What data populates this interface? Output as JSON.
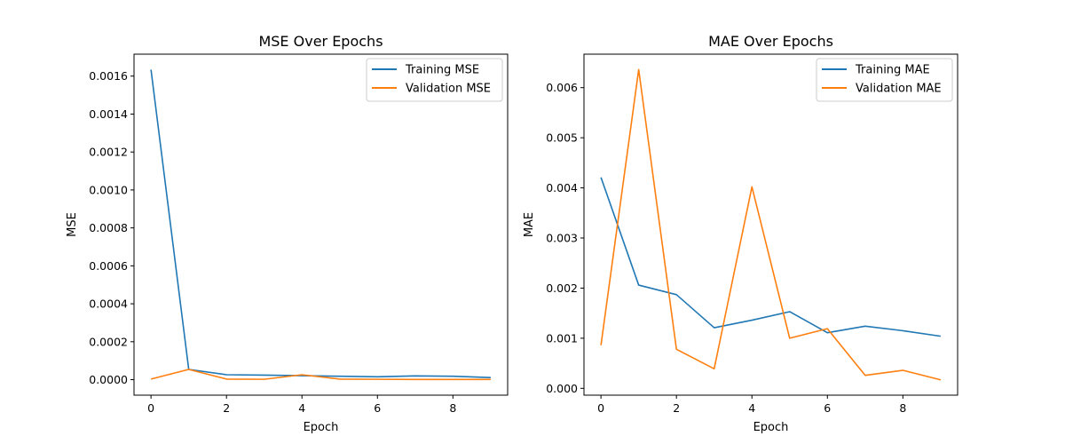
{
  "colors": {
    "training": "#1f77b4",
    "validation": "#ff7f0e"
  },
  "chart_data": [
    {
      "type": "line",
      "title": "MSE Over Epochs",
      "xlabel": "Epoch",
      "ylabel": "MSE",
      "x": [
        0,
        1,
        2,
        3,
        4,
        5,
        6,
        7,
        8,
        9
      ],
      "xlim": [
        -0.45,
        9.45
      ],
      "ylim": [
        -8.17e-05,
        0.0017157
      ],
      "xticks": [
        0,
        2,
        4,
        6,
        8
      ],
      "xtick_labels": [
        "0",
        "2",
        "4",
        "6",
        "8"
      ],
      "yticks": [
        0.0,
        0.0002,
        0.0004,
        0.0006,
        0.0008,
        0.001,
        0.0012,
        0.0014,
        0.0016
      ],
      "ytick_labels": [
        "0.0000",
        "0.0002",
        "0.0004",
        "0.0006",
        "0.0008",
        "0.0010",
        "0.0012",
        "0.0014",
        "0.0016"
      ],
      "legend": "top-right",
      "grid": false,
      "series": [
        {
          "name": "Training MSE",
          "color": "#1f77b4",
          "values": [
            0.001634,
            5.4e-05,
            2.6e-05,
            2.4e-05,
            2.1e-05,
            1.8e-05,
            1.5e-05,
            2e-05,
            1.8e-05,
            1.1e-05
          ]
        },
        {
          "name": "Validation MSE",
          "color": "#ff7f0e",
          "values": [
            3e-06,
            5.4e-05,
            3e-06,
            2e-06,
            2.6e-05,
            3e-06,
            2e-06,
            1e-06,
            1e-06,
            1e-06
          ]
        }
      ]
    },
    {
      "type": "line",
      "title": "MAE Over Epochs",
      "xlabel": "Epoch",
      "ylabel": "MAE",
      "x": [
        0,
        1,
        2,
        3,
        4,
        5,
        6,
        7,
        8,
        9
      ],
      "xlim": [
        -0.45,
        9.45
      ],
      "ylim": [
        -0.000136,
        0.006668
      ],
      "xticks": [
        0,
        2,
        4,
        6,
        8
      ],
      "xtick_labels": [
        "0",
        "2",
        "4",
        "6",
        "8"
      ],
      "yticks": [
        0.0,
        0.001,
        0.002,
        0.003,
        0.004,
        0.005,
        0.006
      ],
      "ytick_labels": [
        "0.000",
        "0.001",
        "0.002",
        "0.003",
        "0.004",
        "0.005",
        "0.006"
      ],
      "legend": "top-right",
      "grid": false,
      "series": [
        {
          "name": "Training MAE",
          "color": "#1f77b4",
          "values": [
            0.00421,
            0.00206,
            0.00187,
            0.00121,
            0.00136,
            0.00153,
            0.00111,
            0.00124,
            0.00115,
            0.00104
          ]
        },
        {
          "name": "Validation MAE",
          "color": "#ff7f0e",
          "values": [
            0.00086,
            0.00636,
            0.00078,
            0.00039,
            0.00402,
            0.001,
            0.00119,
            0.00026,
            0.00036,
            0.00017
          ]
        }
      ]
    }
  ]
}
